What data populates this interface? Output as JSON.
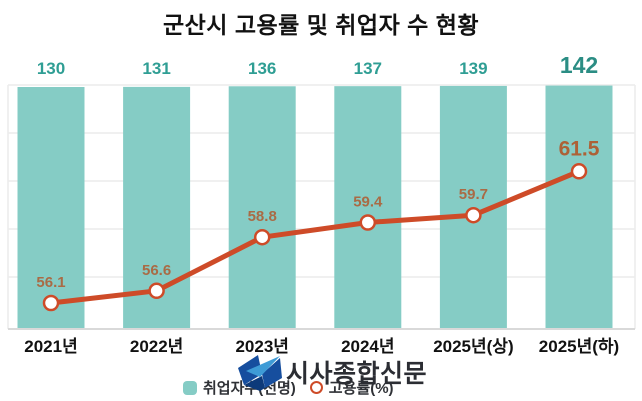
{
  "title": "군산시 고용률 및 취업자 수 현황",
  "watermark": {
    "text": "시사종합신문"
  },
  "legend": {
    "items": [
      {
        "label": "취업자수(천명)",
        "marker": "teal-square"
      },
      {
        "label": "고용률(%)",
        "marker": "orange-ring"
      }
    ]
  },
  "colors": {
    "bar": "#85ccc5",
    "bar_value_label": "#2f9e94",
    "bar_value_label_emphasis": "#2b8d84",
    "line": "#ce4b28",
    "line_marker_fill": "#ffffff",
    "line_value_label": "#a96b45",
    "line_value_label_emphasis": "#ad6136",
    "grid": "#ececec",
    "axis": "#d9d9d9",
    "title_text": "#111111",
    "x_axis_label": "#111111",
    "logo_dark_blue": "#164e9e",
    "logo_light_blue": "#3e9bd6",
    "watermark_text": "#2b2d33"
  },
  "chart_data": {
    "type": "bar",
    "subtype": "bar-with-line-overlay",
    "title": "군산시 고용률 및 취업자 수 현황",
    "categories": [
      "2021년",
      "2022년",
      "2023년",
      "2024년",
      "2025년(상)",
      "2025년(하)"
    ],
    "series": [
      {
        "name": "취업자수(천명)",
        "type": "bar",
        "values": [
          130,
          131,
          136,
          137,
          139,
          142
        ]
      },
      {
        "name": "고용률(%)",
        "type": "line",
        "values": [
          56.1,
          56.6,
          58.8,
          59.4,
          59.7,
          61.5
        ]
      }
    ],
    "data_labels": true,
    "emphasized_category_index": 5,
    "grid": true,
    "legend_position": "bottom",
    "xlabel": "",
    "ylabel": ""
  }
}
